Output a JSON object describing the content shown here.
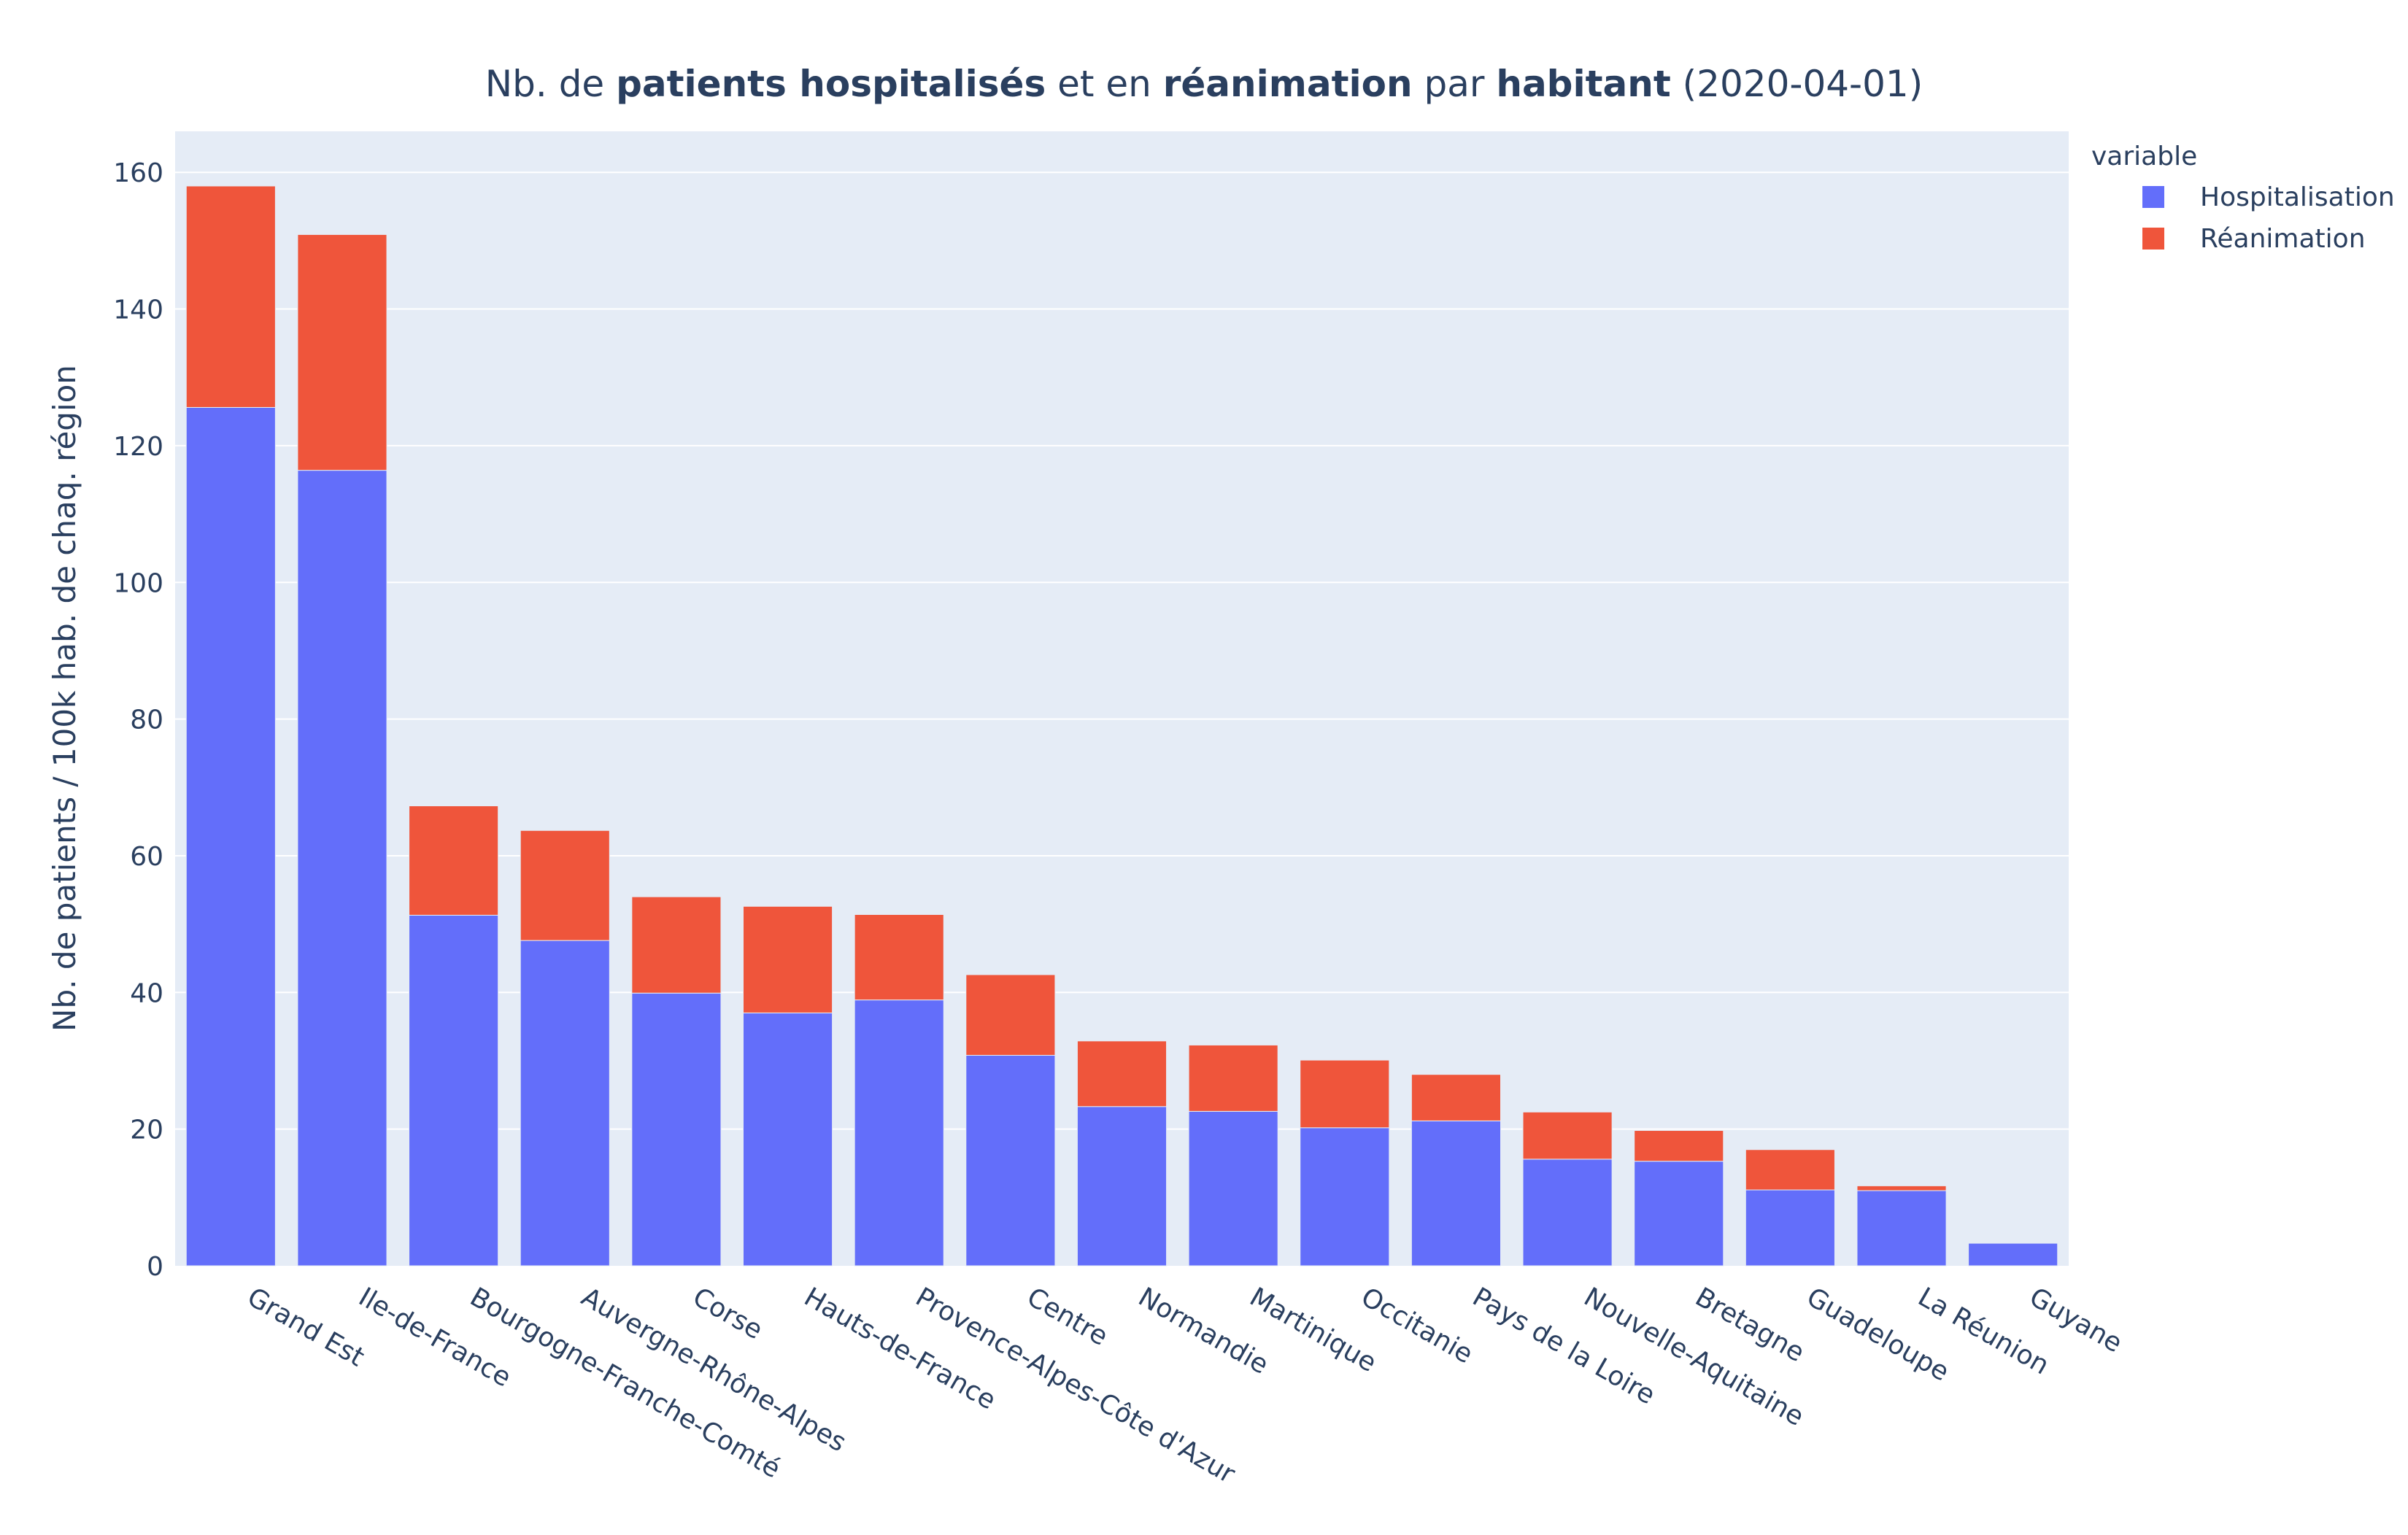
{
  "chart_data": {
    "type": "bar",
    "barmode": "stack",
    "title_parts": [
      {
        "text": "Nb. de ",
        "bold": false
      },
      {
        "text": "patients hospitalisés",
        "bold": true
      },
      {
        "text": " et en ",
        "bold": false
      },
      {
        "text": "réanimation",
        "bold": true
      },
      {
        "text": " par ",
        "bold": false
      },
      {
        "text": "habitant",
        "bold": true
      },
      {
        "text": " (2020-04-01)",
        "bold": false
      }
    ],
    "ylabel": "Nb. de patients / 100k hab. de chaq. région",
    "xlabel": "",
    "ylim": [
      0,
      166
    ],
    "yticks": [
      0,
      20,
      40,
      60,
      80,
      100,
      120,
      140,
      160
    ],
    "grid": true,
    "legend_title": "variable",
    "legend_position": "top-right",
    "categories": [
      "Grand Est",
      "Ile-de-France",
      "Bourgogne-Franche-Comté",
      "Auvergne-Rhône-Alpes",
      "Corse",
      "Hauts-de-France",
      "Provence-Alpes-Côte d'Azur",
      "Centre",
      "Normandie",
      "Martinique",
      "Occitanie",
      "Pays de la Loire",
      "Nouvelle-Aquitaine",
      "Bretagne",
      "Guadeloupe",
      "La Réunion",
      "Guyane"
    ],
    "series": [
      {
        "name": "Hospitalisation",
        "color": "#636efa",
        "values": [
          125.6,
          116.4,
          51.3,
          47.6,
          39.9,
          37.0,
          38.9,
          30.8,
          23.3,
          22.6,
          20.2,
          21.2,
          15.6,
          15.3,
          11.1,
          11.0,
          3.3
        ]
      },
      {
        "name": "Réanimation",
        "color": "#ef553b",
        "values": [
          32.4,
          34.5,
          16.0,
          16.1,
          14.1,
          15.6,
          12.5,
          11.8,
          9.6,
          9.7,
          9.9,
          6.8,
          6.9,
          4.5,
          5.9,
          0.7,
          0.0
        ]
      }
    ],
    "colors": {
      "plot_bg": "#e5ecf6",
      "grid": "#ffffff",
      "text": "#2a3f5f"
    }
  }
}
